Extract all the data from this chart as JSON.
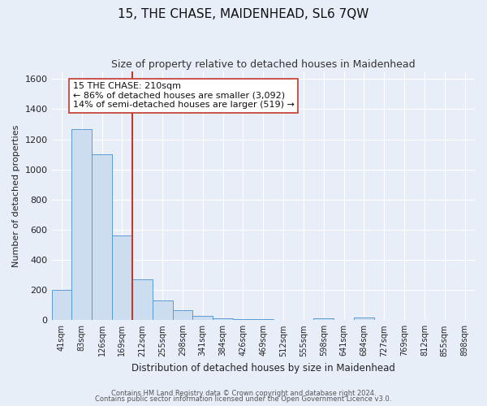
{
  "title": "15, THE CHASE, MAIDENHEAD, SL6 7QW",
  "subtitle": "Size of property relative to detached houses in Maidenhead",
  "xlabel": "Distribution of detached houses by size in Maidenhead",
  "ylabel": "Number of detached properties",
  "footer1": "Contains HM Land Registry data © Crown copyright and database right 2024.",
  "footer2": "Contains public sector information licensed under the Open Government Licence v3.0.",
  "bin_labels": [
    "41sqm",
    "83sqm",
    "126sqm",
    "169sqm",
    "212sqm",
    "255sqm",
    "298sqm",
    "341sqm",
    "384sqm",
    "426sqm",
    "469sqm",
    "512sqm",
    "555sqm",
    "598sqm",
    "641sqm",
    "684sqm",
    "727sqm",
    "769sqm",
    "812sqm",
    "855sqm",
    "898sqm"
  ],
  "bar_heights": [
    200,
    1270,
    1100,
    560,
    270,
    130,
    65,
    30,
    15,
    5,
    5,
    0,
    0,
    15,
    0,
    20,
    0,
    0,
    0,
    0,
    0
  ],
  "bar_color": "#ccddef",
  "bar_edge_color": "#5b9bd5",
  "vline_x_index": 4,
  "vline_color": "#c0392b",
  "ylim": [
    0,
    1650
  ],
  "yticks": [
    0,
    200,
    400,
    600,
    800,
    1000,
    1200,
    1400,
    1600
  ],
  "annotation_line1": "15 THE CHASE: 210sqm",
  "annotation_line2": "← 86% of detached houses are smaller (3,092)",
  "annotation_line3": "14% of semi-detached houses are larger (519) →",
  "annotation_fontsize": 8,
  "bg_color": "#e8eef8",
  "plot_bg_color": "#e8eef8",
  "title_fontsize": 11,
  "subtitle_fontsize": 9,
  "grid_color": "#ffffff"
}
